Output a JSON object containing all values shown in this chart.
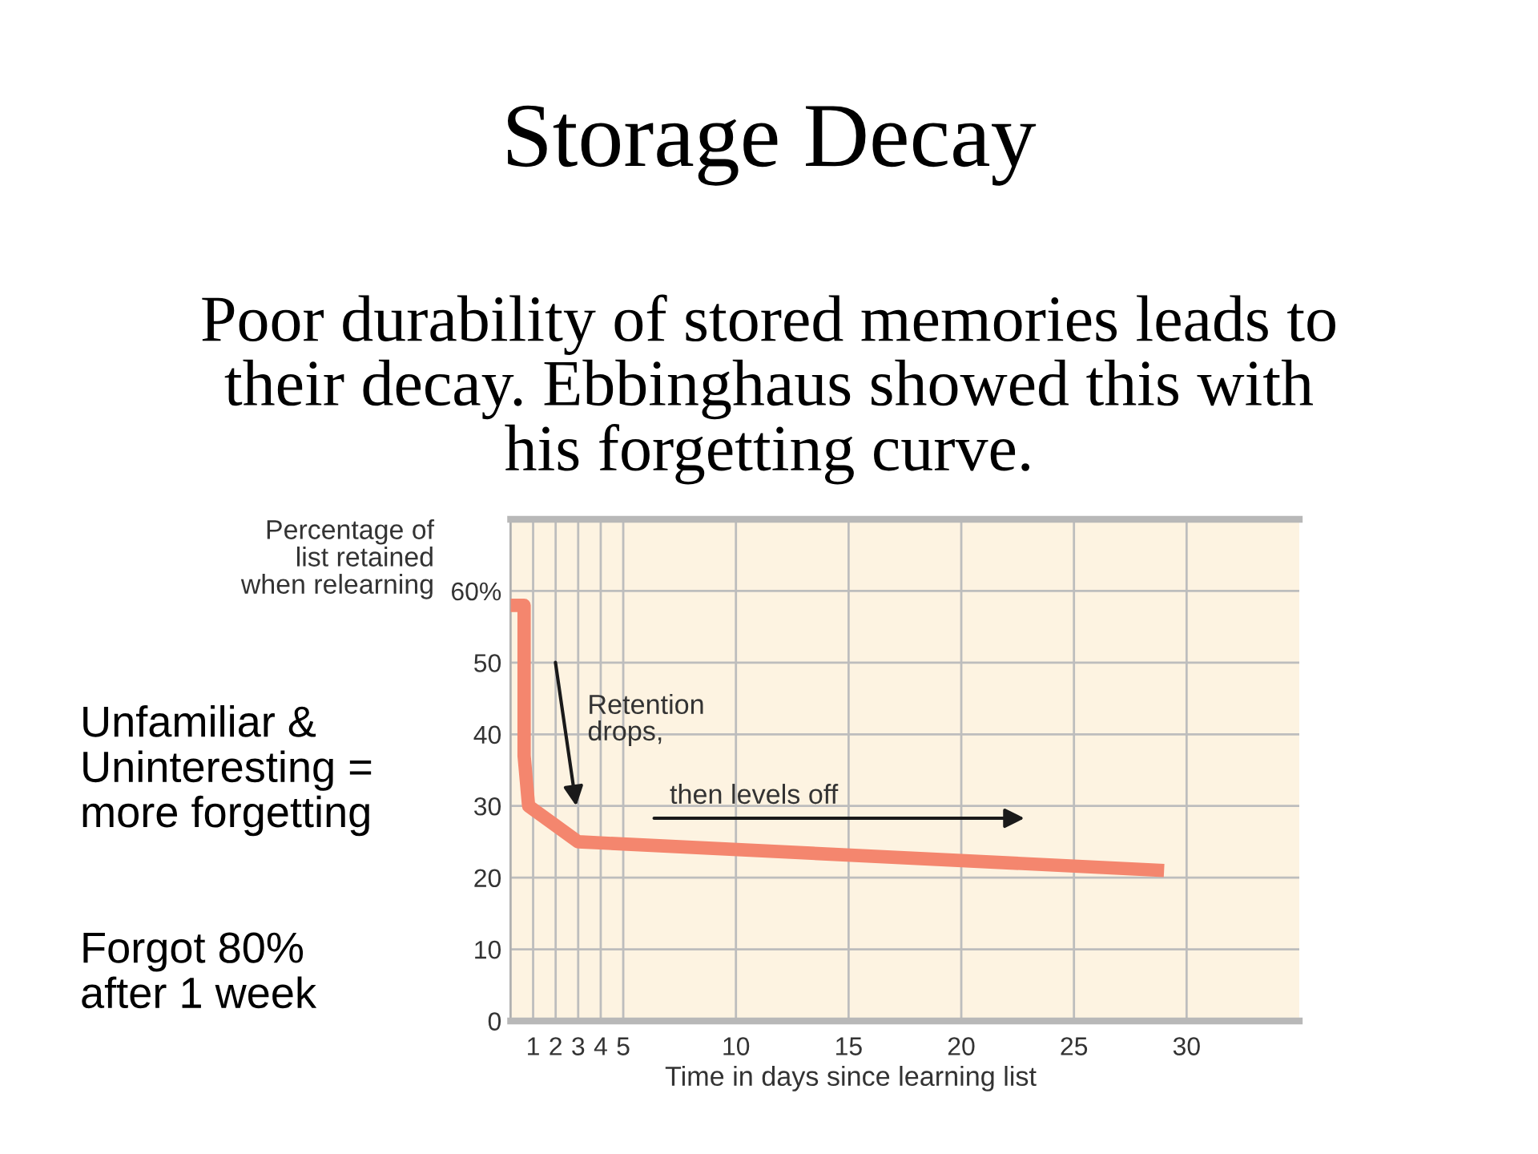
{
  "chart_data": {
    "type": "line",
    "title": "Storage Decay",
    "subtitle": "Poor durability of stored memories leads to\ntheir decay. Ebbinghaus showed this with\nhis forgetting curve.",
    "xlabel": "Time in days since learning list",
    "ylabel": "Percentage of\nlist retained\nwhen relearning",
    "series": [
      {
        "color": "#f4866e",
        "x": [
          0,
          0.6,
          0.6,
          0.8,
          3,
          29
        ],
        "values": [
          58,
          58,
          37,
          30,
          25,
          21
        ]
      }
    ],
    "xlim": [
      0,
      35
    ],
    "ylim": [
      0,
      70
    ],
    "xticks": [
      1,
      2,
      3,
      4,
      5,
      10,
      15,
      20,
      25,
      30
    ],
    "yticks": [
      0,
      10,
      20,
      30,
      40,
      50,
      {
        "value": 60,
        "label": "60%"
      }
    ],
    "grid": true,
    "marker": "none",
    "line_style": "solid",
    "annotations": [
      "Retention\ndrops,",
      "then levels off",
      "Unfamiliar &\nUninteresting =\nmore forgetting",
      "Forgot 80%\nafter 1 week"
    ]
  }
}
